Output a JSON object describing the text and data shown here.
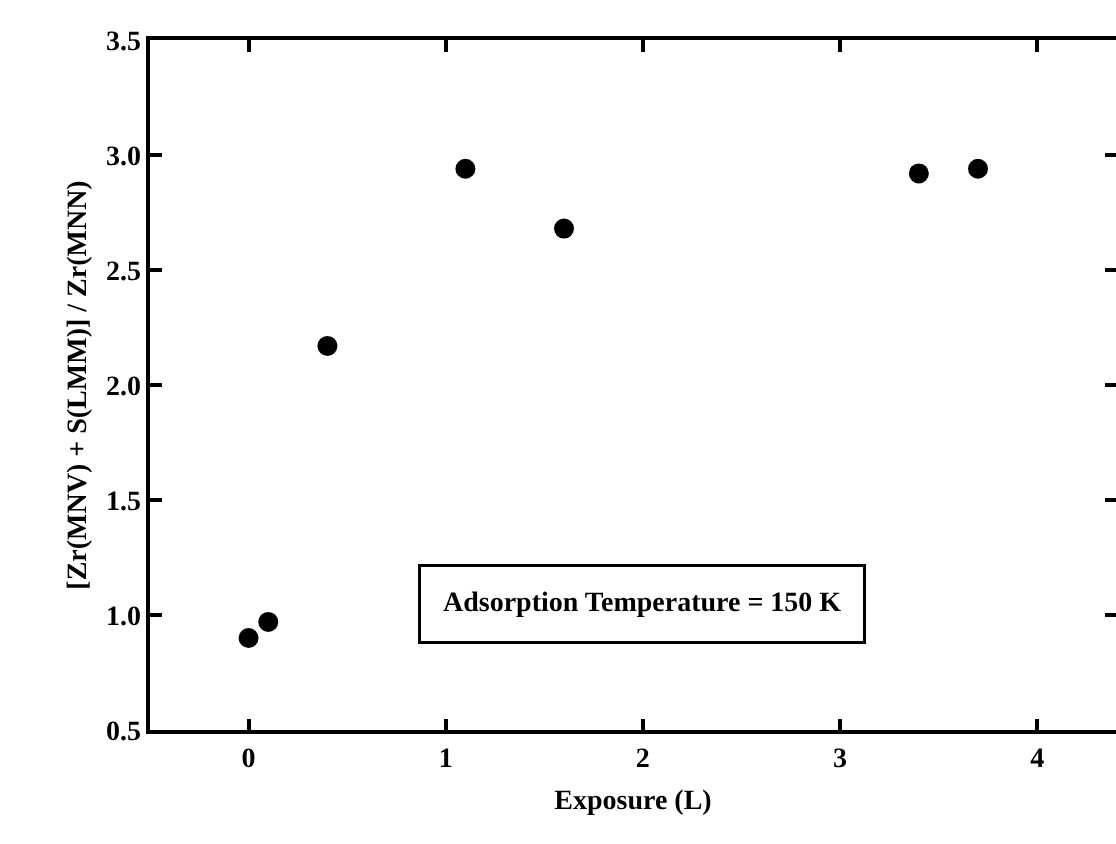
{
  "chart_data": {
    "type": "scatter",
    "xlabel": "Exposure (L)",
    "ylabel": "[Zr(MNV) + S(LMM)] / Zr(MNN)",
    "x": [
      0,
      0.1,
      0.4,
      1.1,
      1.6,
      3.4,
      3.7
    ],
    "series": [
      {
        "color": "#000000",
        "values": [
          0.9,
          0.97,
          2.17,
          2.94,
          2.68,
          2.92,
          2.94
        ]
      }
    ],
    "xlim": [
      -0.5,
      4.4
    ],
    "xticks": [
      0,
      1,
      2,
      3,
      4
    ],
    "ylim": [
      0.5,
      3.5
    ],
    "yticks": [
      0.5,
      {
        "value": 1,
        "label": "1.0"
      },
      1.5,
      {
        "value": 2,
        "label": "2.0"
      },
      2.5,
      {
        "value": 3,
        "label": "3.0"
      },
      3.5
    ],
    "annotations": [
      "Adsorption Temperature = 150 K"
    ],
    "marker": "circle"
  }
}
